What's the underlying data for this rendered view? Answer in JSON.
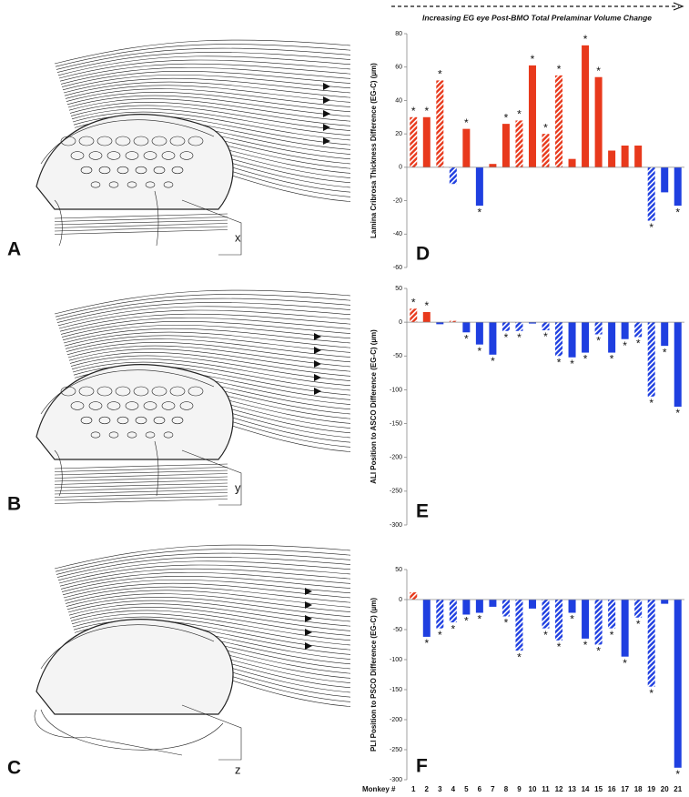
{
  "header": "Increasing EG eye Post-BMO Total Prelaminar Volume  Change",
  "illustrations": [
    {
      "panel": "A",
      "label": "x"
    },
    {
      "panel": "B",
      "label": "y"
    },
    {
      "panel": "C",
      "label": "z"
    }
  ],
  "chart_data": [
    {
      "type": "bar",
      "panel": "D",
      "ylabel": "Lamina Cribrosa Thickness Difference (EG-C) (µm)",
      "ylim": [
        -60,
        80
      ],
      "yticks": [
        -60,
        -40,
        -20,
        0,
        20,
        40,
        60,
        80
      ],
      "positive_color": "#e8391c",
      "negative_color": "#1f3fe0",
      "marker": "*",
      "values": [
        30,
        30,
        52,
        -10,
        23,
        -23,
        2,
        26,
        28,
        61,
        20,
        55,
        5,
        73,
        54,
        10,
        13,
        13,
        -32,
        -15,
        -23
      ],
      "hatched": [
        true,
        false,
        true,
        true,
        false,
        false,
        false,
        false,
        true,
        false,
        true,
        true,
        false,
        false,
        false,
        false,
        false,
        false,
        true,
        false,
        false
      ],
      "significant": [
        true,
        true,
        true,
        false,
        true,
        true,
        false,
        true,
        true,
        true,
        true,
        true,
        false,
        true,
        true,
        false,
        false,
        false,
        true,
        false,
        true
      ]
    },
    {
      "type": "bar",
      "panel": "E",
      "ylabel": "ALI Position to ASCO  Difference (EG-C) (µm)",
      "ylim": [
        -300,
        50
      ],
      "yticks": [
        -300,
        -250,
        -200,
        -150,
        -100,
        -50,
        0,
        50
      ],
      "positive_color": "#e8391c",
      "negative_color": "#1f3fe0",
      "marker": "*",
      "values": [
        20,
        15,
        -3,
        2,
        -15,
        -33,
        -48,
        -13,
        -13,
        -2,
        -12,
        -50,
        -52,
        -45,
        -18,
        -45,
        -25,
        -22,
        -110,
        -35,
        -125
      ],
      "hatched": [
        true,
        false,
        false,
        true,
        false,
        false,
        false,
        true,
        true,
        false,
        true,
        true,
        false,
        false,
        true,
        false,
        false,
        true,
        true,
        false,
        false
      ],
      "significant": [
        true,
        true,
        false,
        false,
        true,
        true,
        true,
        true,
        true,
        false,
        true,
        true,
        true,
        true,
        true,
        true,
        true,
        true,
        true,
        true,
        true
      ]
    },
    {
      "type": "bar",
      "panel": "F",
      "ylabel": "PLI Position to PSCO  Difference (EG-C) (µm)",
      "xlabel": "Monkey #",
      "categories": [
        "1",
        "2",
        "3",
        "4",
        "5",
        "6",
        "7",
        "8",
        "9",
        "10",
        "11",
        "12",
        "13",
        "14",
        "15",
        "16",
        "17",
        "18",
        "19",
        "20",
        "21"
      ],
      "ylim": [
        -300,
        50
      ],
      "yticks": [
        -300,
        -250,
        -200,
        -150,
        -100,
        -50,
        0,
        50
      ],
      "positive_color": "#e8391c",
      "negative_color": "#1f3fe0",
      "marker": "*",
      "values": [
        12,
        -62,
        -48,
        -38,
        -25,
        -22,
        -12,
        -28,
        -85,
        -15,
        -48,
        -68,
        -22,
        -65,
        -75,
        -48,
        -95,
        -30,
        -145,
        -7,
        -280
      ],
      "hatched": [
        true,
        false,
        true,
        true,
        false,
        false,
        false,
        true,
        true,
        false,
        true,
        true,
        false,
        false,
        true,
        true,
        false,
        true,
        true,
        false,
        false
      ],
      "significant": [
        false,
        true,
        true,
        true,
        true,
        true,
        false,
        true,
        true,
        false,
        true,
        true,
        true,
        true,
        true,
        true,
        true,
        true,
        true,
        false,
        true
      ]
    }
  ]
}
